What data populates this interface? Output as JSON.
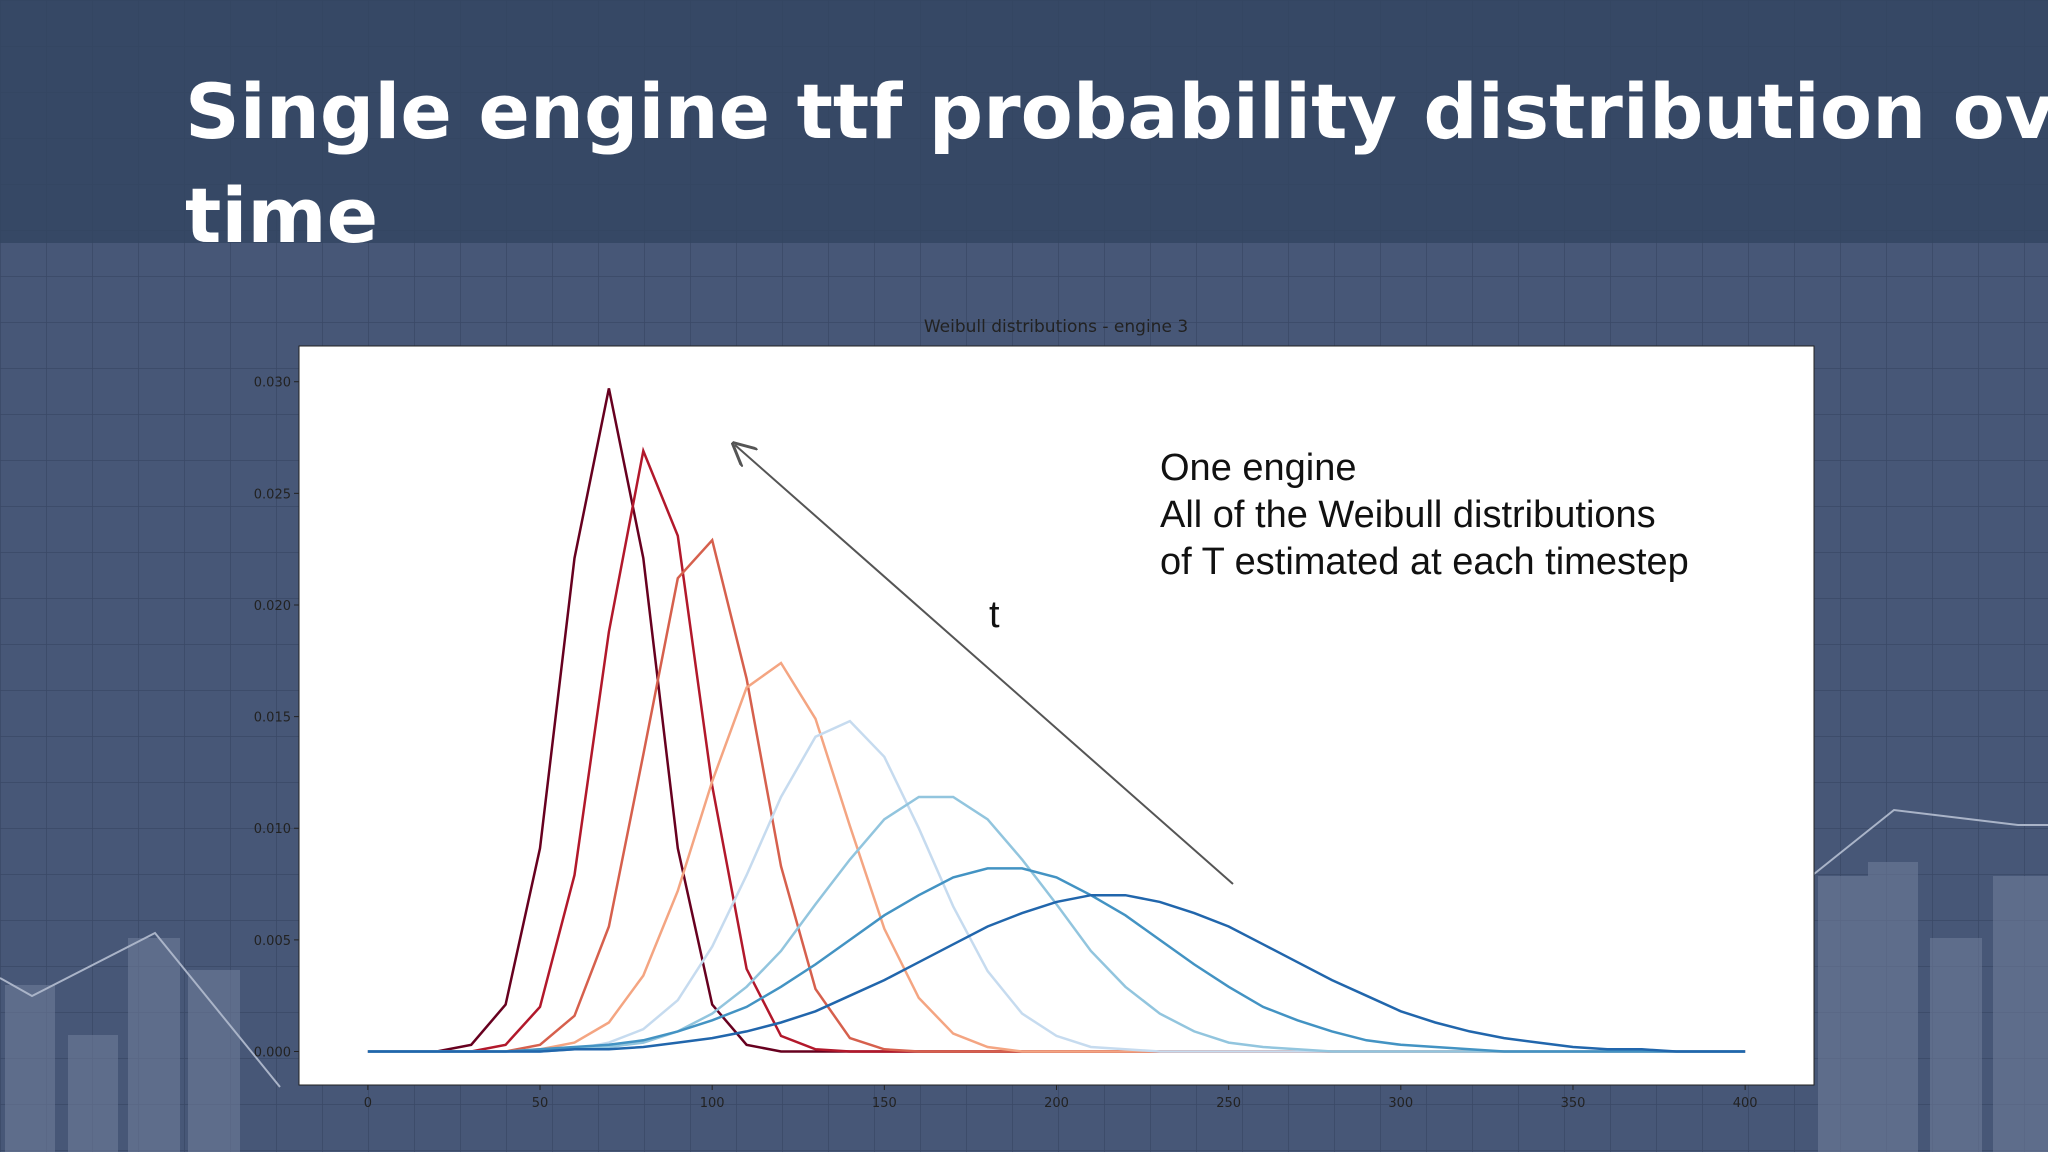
{
  "slide_title": "Single engine ttf probability distribution over time",
  "chart_data": {
    "type": "line",
    "title": "Weibull distributions - engine 3",
    "annotations": [
      "One engine",
      "All of the Weibull distributions",
      "of T estimated at each timestep",
      "t"
    ],
    "x": [
      0,
      10,
      20,
      30,
      40,
      50,
      60,
      70,
      80,
      90,
      100,
      110,
      120,
      130,
      140,
      150,
      160,
      170,
      180,
      190,
      200,
      210,
      220,
      230,
      240,
      250,
      260,
      270,
      280,
      290,
      300,
      310,
      320,
      330,
      340,
      350,
      360,
      370,
      380,
      390,
      400
    ],
    "xlim": [
      -20,
      420
    ],
    "xticks": [
      0,
      50,
      100,
      150,
      200,
      250,
      300,
      350,
      400
    ],
    "ylim": [
      -0.0015,
      0.0316
    ],
    "yticks": [
      {
        "value": 0,
        "label": "0.000"
      },
      0.005,
      {
        "value": 0.01,
        "label": "0.010"
      },
      0.015,
      {
        "value": 0.02,
        "label": "0.020"
      },
      0.025,
      {
        "value": 0.03,
        "label": "0.030"
      }
    ],
    "series": [
      {
        "color": "#67001f",
        "values": [
          0,
          0,
          0,
          0.0003,
          0.0021,
          0.0091,
          0.0221,
          0.0297,
          0.0221,
          0.0091,
          0.0021,
          0.0003,
          0,
          0,
          0,
          0,
          0,
          0,
          0,
          0,
          0,
          0,
          0,
          0,
          0,
          0,
          0,
          0,
          0,
          0,
          0,
          0,
          0,
          0,
          0,
          0,
          0,
          0,
          0,
          0,
          0
        ]
      },
      {
        "color": "#b2182b",
        "values": [
          0,
          0,
          0,
          0,
          0.0003,
          0.002,
          0.0079,
          0.0188,
          0.0269,
          0.0231,
          0.0119,
          0.0037,
          0.0007,
          0.0001,
          0,
          0,
          0,
          0,
          0,
          0,
          0,
          0,
          0,
          0,
          0,
          0,
          0,
          0,
          0,
          0,
          0,
          0,
          0,
          0,
          0,
          0,
          0,
          0,
          0,
          0,
          0
        ]
      },
      {
        "color": "#d6604d",
        "values": [
          0,
          0,
          0,
          0,
          0,
          0.0003,
          0.0016,
          0.0056,
          0.0133,
          0.0212,
          0.0229,
          0.0167,
          0.0083,
          0.0028,
          0.0006,
          0.0001,
          0,
          0,
          0,
          0,
          0,
          0,
          0,
          0,
          0,
          0,
          0,
          0,
          0,
          0,
          0,
          0,
          0,
          0,
          0,
          0,
          0,
          0,
          0,
          0,
          0
        ]
      },
      {
        "color": "#f4a582",
        "values": [
          0,
          0,
          0,
          0,
          0,
          0.0001,
          0.0004,
          0.0013,
          0.0034,
          0.0072,
          0.0121,
          0.0163,
          0.0174,
          0.0149,
          0.0101,
          0.0055,
          0.0024,
          0.0008,
          0.0002,
          0,
          0,
          0,
          0,
          0,
          0,
          0,
          0,
          0,
          0,
          0,
          0,
          0,
          0,
          0,
          0,
          0,
          0,
          0,
          0,
          0,
          0
        ]
      },
      {
        "color": "#c6dbef",
        "values": [
          0,
          0,
          0,
          0,
          0,
          0,
          0.0001,
          0.0004,
          0.001,
          0.0023,
          0.0047,
          0.0079,
          0.0114,
          0.0141,
          0.0148,
          0.0132,
          0.01,
          0.0065,
          0.0036,
          0.0017,
          0.0007,
          0.0002,
          0.0001,
          0,
          0,
          0,
          0,
          0,
          0,
          0,
          0,
          0,
          0,
          0,
          0,
          0,
          0,
          0,
          0,
          0,
          0
        ]
      },
      {
        "color": "#92c5de",
        "values": [
          0,
          0,
          0,
          0,
          0,
          0,
          0.0001,
          0.0002,
          0.0004,
          0.0009,
          0.0017,
          0.0029,
          0.0045,
          0.0066,
          0.0086,
          0.0104,
          0.0114,
          0.0114,
          0.0104,
          0.0086,
          0.0066,
          0.0045,
          0.0029,
          0.0017,
          0.0009,
          0.0004,
          0.0002,
          0.0001,
          0,
          0,
          0,
          0,
          0,
          0,
          0,
          0,
          0,
          0,
          0,
          0,
          0
        ]
      },
      {
        "color": "#4393c3",
        "values": [
          0,
          0,
          0,
          0,
          0,
          0.0001,
          0.0002,
          0.0003,
          0.0005,
          0.0009,
          0.0014,
          0.002,
          0.0029,
          0.0039,
          0.005,
          0.0061,
          0.007,
          0.0078,
          0.0082,
          0.0082,
          0.0078,
          0.007,
          0.0061,
          0.005,
          0.0039,
          0.0029,
          0.002,
          0.0014,
          0.0009,
          0.0005,
          0.0003,
          0.0002,
          0.0001,
          0,
          0,
          0,
          0,
          0,
          0,
          0,
          0
        ]
      },
      {
        "color": "#2166ac",
        "values": [
          0,
          0,
          0,
          0,
          0,
          0,
          0.0001,
          0.0001,
          0.0002,
          0.0004,
          0.0006,
          0.0009,
          0.0013,
          0.0018,
          0.0025,
          0.0032,
          0.004,
          0.0048,
          0.0056,
          0.0062,
          0.0067,
          0.007,
          0.007,
          0.0067,
          0.0062,
          0.0056,
          0.0048,
          0.004,
          0.0032,
          0.0025,
          0.0018,
          0.0013,
          0.0009,
          0.0006,
          0.0004,
          0.0002,
          0.0001,
          0.0001,
          0,
          0,
          0
        ]
      }
    ]
  }
}
